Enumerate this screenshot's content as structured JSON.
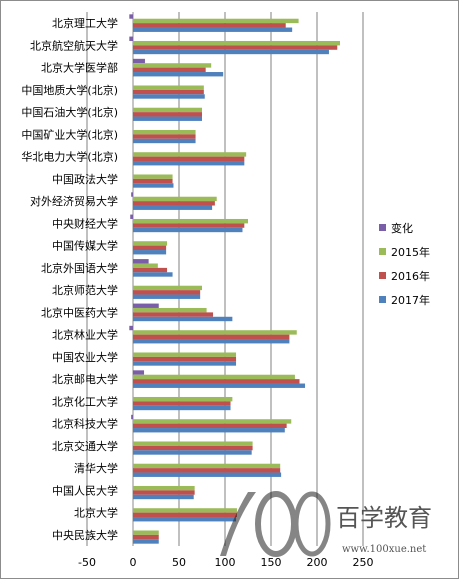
{
  "chart_data": {
    "type": "bar",
    "orientation": "horizontal",
    "categories": [
      "北京理工大学",
      "北京航空航天大学",
      "北京大学医学部",
      "中国地质大学(北京)",
      "中国石油大学(北京)",
      "中国矿业大学(北京)",
      "华北电力大学(北京)",
      "中国政法大学",
      "对外经济贸易大学",
      "中央财经大学",
      "中国传媒大学",
      "北京外国语大学",
      "北京师范大学",
      "北京中医药大学",
      "北京林业大学",
      "中国农业大学",
      "北京邮电大学",
      "北京化工大学",
      "北京科技大学",
      "北京交通大学",
      "清华大学",
      "中国人民大学",
      "北京大学",
      "中央民族大学"
    ],
    "series": [
      {
        "name": "变化",
        "color": "#7b5ea8",
        "values": [
          -4,
          -4,
          13,
          0,
          0,
          0,
          0,
          0,
          -2,
          -3,
          0,
          17,
          0,
          28,
          -4,
          0,
          12,
          0,
          -2,
          0,
          0,
          0,
          0,
          0
        ]
      },
      {
        "name": "2015年",
        "color": "#9bbb59",
        "values": [
          180,
          225,
          85,
          77,
          75,
          68,
          123,
          43,
          91,
          125,
          37,
          27,
          75,
          80,
          178,
          112,
          176,
          108,
          172,
          130,
          160,
          67,
          113,
          28
        ]
      },
      {
        "name": "2016年",
        "color": "#c0504d",
        "values": [
          166,
          222,
          79,
          77,
          75,
          68,
          121,
          43,
          89,
          121,
          36,
          37,
          73,
          87,
          170,
          112,
          181,
          106,
          167,
          130,
          160,
          67,
          113,
          28
        ]
      },
      {
        "name": "2017年",
        "color": "#4f81bd",
        "values": [
          173,
          213,
          98,
          78,
          75,
          68,
          121,
          44,
          86,
          119,
          36,
          43,
          73,
          108,
          170,
          112,
          187,
          106,
          165,
          129,
          161,
          66,
          112,
          28
        ]
      }
    ],
    "xlim": [
      -50,
      250
    ],
    "xticks": [
      -50,
      0,
      50,
      100,
      150,
      200,
      250
    ],
    "legend": {
      "position": "right",
      "entries": [
        "变化",
        "2015年",
        "2016年",
        "2017年"
      ]
    },
    "grid": "vertical major gridlines"
  },
  "watermark": {
    "logo": "100",
    "brand": "百学教育",
    "url": "www.100xue.net"
  }
}
